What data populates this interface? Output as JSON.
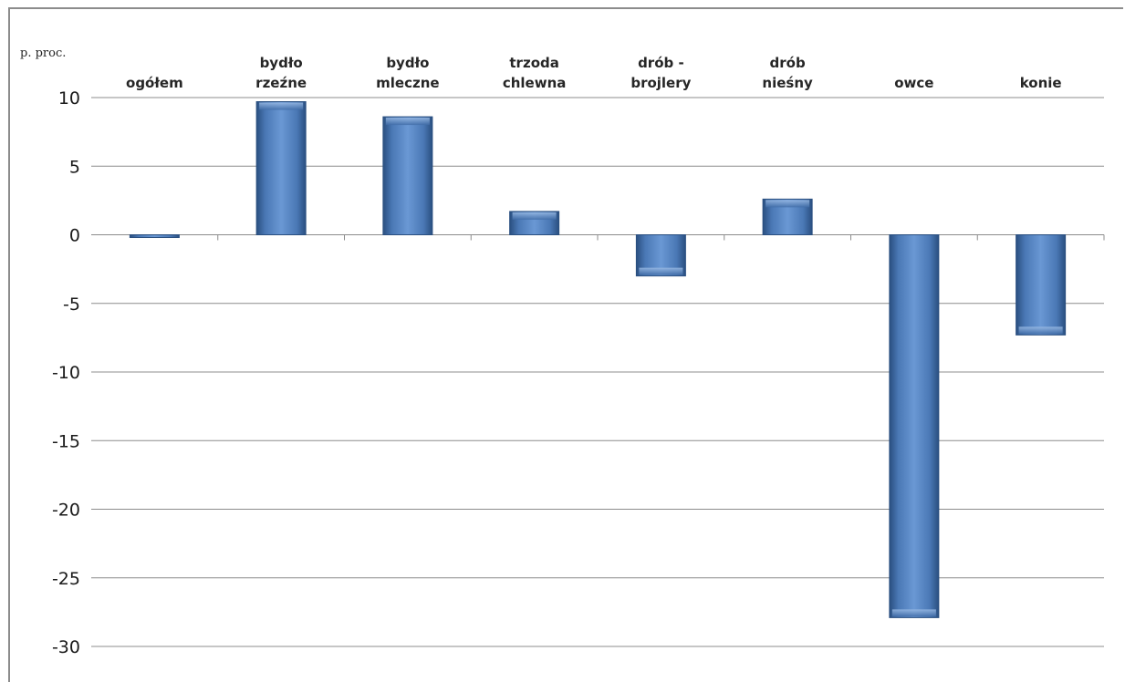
{
  "chart_data": {
    "type": "bar",
    "ylabel": "p. proc.",
    "categories": [
      [
        "ogółem"
      ],
      [
        "bydło",
        "rzeźne"
      ],
      [
        "bydło",
        "mleczne"
      ],
      [
        "trzoda",
        "chlewna"
      ],
      [
        "drób -",
        "brojlery"
      ],
      [
        "drób",
        "nieśny"
      ],
      [
        "owce"
      ],
      [
        "konie"
      ]
    ],
    "values": [
      -0.2,
      9.7,
      8.6,
      1.7,
      -3.0,
      2.6,
      -27.9,
      -7.3
    ],
    "ylim": [
      -30,
      10
    ],
    "yticks": [
      10,
      5,
      0,
      -5,
      -10,
      -15,
      -20,
      -25,
      -30
    ],
    "grid": true,
    "legend": "none",
    "bar_color": "#4f81bd"
  }
}
